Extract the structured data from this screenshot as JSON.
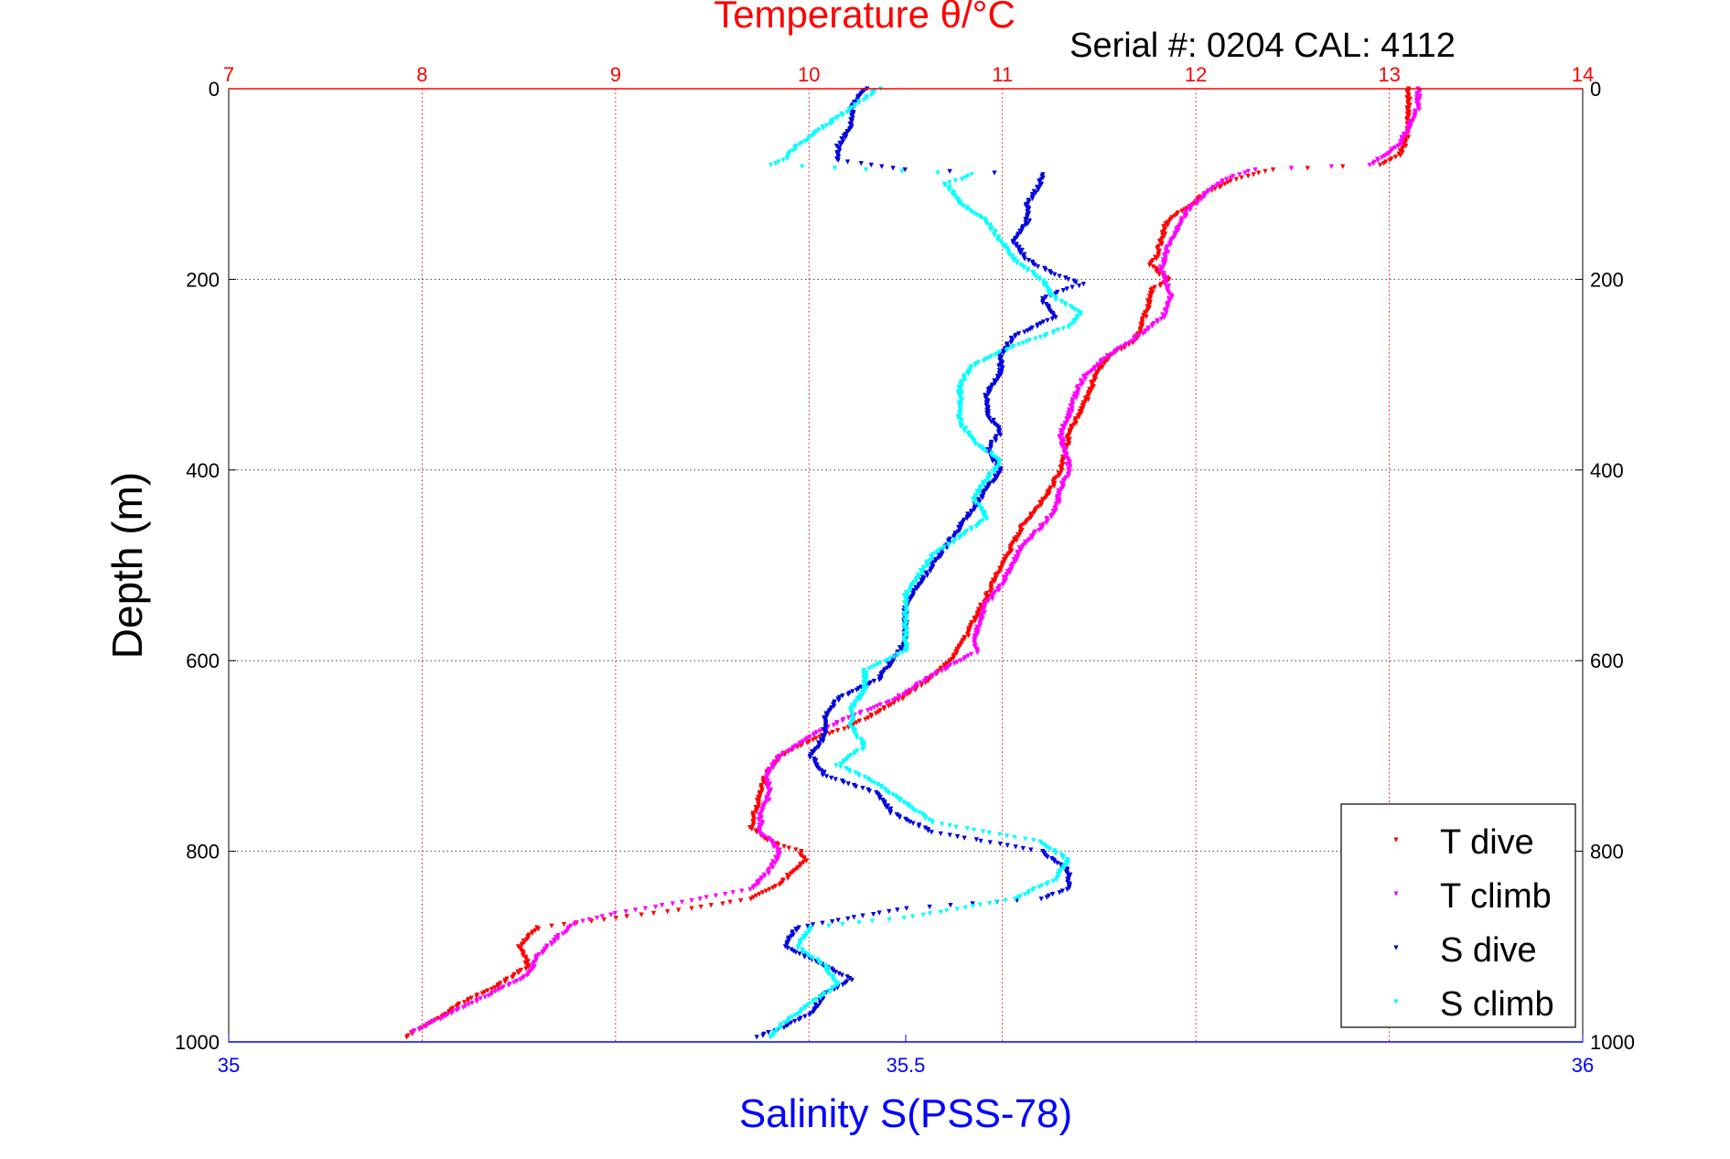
{
  "serial_text": "Serial #: 0204  CAL: 4112",
  "chart_data": {
    "type": "scatter",
    "title": "Temperature θ/°C",
    "ylabel": "Depth (m)",
    "xlabel": "Salinity S(PSS-78)",
    "ylim": [
      0,
      1000
    ],
    "y_reversed": true,
    "y_ticks": [
      "0",
      "200",
      "400",
      "600",
      "800",
      "1000"
    ],
    "temperature_axis": {
      "position": "top",
      "range": [
        7,
        14
      ],
      "ticks": [
        "7",
        "8",
        "9",
        "10",
        "11",
        "12",
        "13",
        "14"
      ],
      "color": "#ff0000"
    },
    "salinity_axis": {
      "position": "bottom",
      "range": [
        35,
        36
      ],
      "ticks": [
        "35",
        "35.5",
        "36"
      ],
      "color": "#0000ff"
    },
    "grid": true,
    "legend_position": "bottom-right",
    "series": [
      {
        "name": "T dive",
        "axis": "temperature",
        "color": "#ff0000",
        "points": [
          [
            0,
            13.1
          ],
          [
            20,
            13.1
          ],
          [
            40,
            13.1
          ],
          [
            60,
            13.08
          ],
          [
            70,
            13.05
          ],
          [
            80,
            12.95
          ],
          [
            85,
            12.4
          ],
          [
            95,
            12.2
          ],
          [
            110,
            12.05
          ],
          [
            125,
            11.95
          ],
          [
            140,
            11.85
          ],
          [
            160,
            11.82
          ],
          [
            175,
            11.8
          ],
          [
            185,
            11.77
          ],
          [
            195,
            11.82
          ],
          [
            200,
            11.87
          ],
          [
            210,
            11.78
          ],
          [
            230,
            11.75
          ],
          [
            250,
            11.72
          ],
          [
            265,
            11.68
          ],
          [
            280,
            11.55
          ],
          [
            300,
            11.48
          ],
          [
            320,
            11.45
          ],
          [
            340,
            11.4
          ],
          [
            360,
            11.35
          ],
          [
            380,
            11.33
          ],
          [
            400,
            11.3
          ],
          [
            420,
            11.25
          ],
          [
            440,
            11.18
          ],
          [
            460,
            11.1
          ],
          [
            480,
            11.05
          ],
          [
            500,
            11.0
          ],
          [
            520,
            10.95
          ],
          [
            540,
            10.9
          ],
          [
            560,
            10.85
          ],
          [
            580,
            10.8
          ],
          [
            600,
            10.73
          ],
          [
            620,
            10.62
          ],
          [
            640,
            10.48
          ],
          [
            660,
            10.3
          ],
          [
            670,
            10.2
          ],
          [
            680,
            10.05
          ],
          [
            700,
            9.85
          ],
          [
            720,
            9.78
          ],
          [
            740,
            9.75
          ],
          [
            760,
            9.72
          ],
          [
            775,
            9.7
          ],
          [
            790,
            9.8
          ],
          [
            800,
            9.95
          ],
          [
            810,
            9.98
          ],
          [
            820,
            9.92
          ],
          [
            835,
            9.85
          ],
          [
            850,
            9.7
          ],
          [
            860,
            9.4
          ],
          [
            870,
            9.0
          ],
          [
            880,
            8.6
          ],
          [
            900,
            8.5
          ],
          [
            920,
            8.55
          ],
          [
            940,
            8.4
          ],
          [
            960,
            8.2
          ],
          [
            980,
            8.05
          ],
          [
            990,
            7.95
          ],
          [
            995,
            7.92
          ]
        ]
      },
      {
        "name": "T climb",
        "axis": "temperature",
        "color": "#ff00ff",
        "points": [
          [
            0,
            13.15
          ],
          [
            20,
            13.15
          ],
          [
            40,
            13.1
          ],
          [
            60,
            13.05
          ],
          [
            80,
            12.9
          ],
          [
            85,
            12.3
          ],
          [
            95,
            12.15
          ],
          [
            110,
            12.05
          ],
          [
            130,
            11.95
          ],
          [
            150,
            11.9
          ],
          [
            170,
            11.85
          ],
          [
            190,
            11.82
          ],
          [
            205,
            11.85
          ],
          [
            220,
            11.87
          ],
          [
            240,
            11.83
          ],
          [
            260,
            11.7
          ],
          [
            280,
            11.55
          ],
          [
            300,
            11.43
          ],
          [
            320,
            11.38
          ],
          [
            340,
            11.35
          ],
          [
            360,
            11.3
          ],
          [
            380,
            11.32
          ],
          [
            400,
            11.35
          ],
          [
            420,
            11.3
          ],
          [
            440,
            11.28
          ],
          [
            460,
            11.2
          ],
          [
            480,
            11.1
          ],
          [
            500,
            11.05
          ],
          [
            520,
            11.0
          ],
          [
            540,
            10.92
          ],
          [
            560,
            10.88
          ],
          [
            580,
            10.85
          ],
          [
            590,
            10.88
          ],
          [
            600,
            10.78
          ],
          [
            620,
            10.6
          ],
          [
            640,
            10.45
          ],
          [
            660,
            10.2
          ],
          [
            680,
            10.0
          ],
          [
            700,
            9.85
          ],
          [
            720,
            9.78
          ],
          [
            740,
            9.8
          ],
          [
            760,
            9.75
          ],
          [
            780,
            9.75
          ],
          [
            800,
            9.85
          ],
          [
            820,
            9.8
          ],
          [
            840,
            9.7
          ],
          [
            855,
            9.3
          ],
          [
            865,
            9.0
          ],
          [
            875,
            8.8
          ],
          [
            890,
            8.7
          ],
          [
            910,
            8.6
          ],
          [
            930,
            8.55
          ],
          [
            950,
            8.35
          ],
          [
            970,
            8.15
          ],
          [
            990,
            7.95
          ]
        ]
      },
      {
        "name": "S dive",
        "axis": "salinity",
        "color": "#0000dd",
        "points": [
          [
            0,
            35.47
          ],
          [
            20,
            35.46
          ],
          [
            40,
            35.46
          ],
          [
            60,
            35.45
          ],
          [
            75,
            35.45
          ],
          [
            85,
            35.5
          ],
          [
            90,
            35.6
          ],
          [
            100,
            35.6
          ],
          [
            120,
            35.59
          ],
          [
            140,
            35.59
          ],
          [
            160,
            35.58
          ],
          [
            180,
            35.59
          ],
          [
            195,
            35.61
          ],
          [
            205,
            35.63
          ],
          [
            220,
            35.6
          ],
          [
            240,
            35.61
          ],
          [
            260,
            35.58
          ],
          [
            280,
            35.57
          ],
          [
            300,
            35.57
          ],
          [
            320,
            35.56
          ],
          [
            340,
            35.56
          ],
          [
            360,
            35.57
          ],
          [
            380,
            35.56
          ],
          [
            400,
            35.57
          ],
          [
            420,
            35.56
          ],
          [
            440,
            35.55
          ],
          [
            460,
            35.54
          ],
          [
            480,
            35.53
          ],
          [
            500,
            35.52
          ],
          [
            520,
            35.51
          ],
          [
            540,
            35.5
          ],
          [
            560,
            35.5
          ],
          [
            580,
            35.5
          ],
          [
            600,
            35.49
          ],
          [
            620,
            35.48
          ],
          [
            640,
            35.45
          ],
          [
            660,
            35.44
          ],
          [
            680,
            35.44
          ],
          [
            700,
            35.43
          ],
          [
            720,
            35.44
          ],
          [
            740,
            35.48
          ],
          [
            760,
            35.49
          ],
          [
            780,
            35.52
          ],
          [
            800,
            35.6
          ],
          [
            820,
            35.62
          ],
          [
            840,
            35.62
          ],
          [
            850,
            35.6
          ],
          [
            860,
            35.5
          ],
          [
            880,
            35.42
          ],
          [
            900,
            35.41
          ],
          [
            920,
            35.44
          ],
          [
            935,
            35.46
          ],
          [
            950,
            35.44
          ],
          [
            970,
            35.43
          ],
          [
            985,
            35.41
          ],
          [
            995,
            35.39
          ]
        ]
      },
      {
        "name": "S climb",
        "axis": "salinity",
        "color": "#00ffff",
        "points": [
          [
            0,
            35.48
          ],
          [
            10,
            35.47
          ],
          [
            20,
            35.46
          ],
          [
            40,
            35.44
          ],
          [
            60,
            35.42
          ],
          [
            75,
            35.41
          ],
          [
            80,
            35.4
          ],
          [
            85,
            35.47
          ],
          [
            90,
            35.55
          ],
          [
            100,
            35.53
          ],
          [
            120,
            35.54
          ],
          [
            140,
            35.56
          ],
          [
            160,
            35.57
          ],
          [
            180,
            35.58
          ],
          [
            200,
            35.6
          ],
          [
            220,
            35.61
          ],
          [
            235,
            35.63
          ],
          [
            250,
            35.62
          ],
          [
            270,
            35.58
          ],
          [
            290,
            35.55
          ],
          [
            310,
            35.54
          ],
          [
            330,
            35.54
          ],
          [
            350,
            35.54
          ],
          [
            370,
            35.55
          ],
          [
            390,
            35.57
          ],
          [
            410,
            35.56
          ],
          [
            430,
            35.55
          ],
          [
            450,
            35.56
          ],
          [
            470,
            35.54
          ],
          [
            490,
            35.52
          ],
          [
            510,
            35.51
          ],
          [
            530,
            35.5
          ],
          [
            550,
            35.5
          ],
          [
            570,
            35.5
          ],
          [
            590,
            35.5
          ],
          [
            610,
            35.47
          ],
          [
            630,
            35.47
          ],
          [
            650,
            35.46
          ],
          [
            670,
            35.46
          ],
          [
            690,
            35.47
          ],
          [
            710,
            35.45
          ],
          [
            730,
            35.48
          ],
          [
            750,
            35.5
          ],
          [
            770,
            35.52
          ],
          [
            790,
            35.6
          ],
          [
            810,
            35.62
          ],
          [
            830,
            35.61
          ],
          [
            850,
            35.58
          ],
          [
            870,
            35.5
          ],
          [
            880,
            35.43
          ],
          [
            900,
            35.42
          ],
          [
            920,
            35.44
          ],
          [
            940,
            35.45
          ],
          [
            960,
            35.43
          ],
          [
            980,
            35.41
          ],
          [
            995,
            35.4
          ]
        ]
      }
    ]
  }
}
